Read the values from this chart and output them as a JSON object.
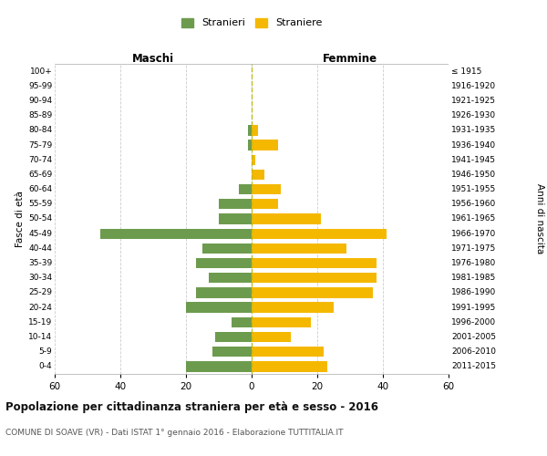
{
  "age_groups": [
    "100+",
    "95-99",
    "90-94",
    "85-89",
    "80-84",
    "75-79",
    "70-74",
    "65-69",
    "60-64",
    "55-59",
    "50-54",
    "45-49",
    "40-44",
    "35-39",
    "30-34",
    "25-29",
    "20-24",
    "15-19",
    "10-14",
    "5-9",
    "0-4"
  ],
  "birth_years": [
    "≤ 1915",
    "1916-1920",
    "1921-1925",
    "1926-1930",
    "1931-1935",
    "1936-1940",
    "1941-1945",
    "1946-1950",
    "1951-1955",
    "1956-1960",
    "1961-1965",
    "1966-1970",
    "1971-1975",
    "1976-1980",
    "1981-1985",
    "1986-1990",
    "1991-1995",
    "1996-2000",
    "2001-2005",
    "2006-2010",
    "2011-2015"
  ],
  "males": [
    0,
    0,
    0,
    0,
    1,
    1,
    0,
    0,
    4,
    10,
    10,
    46,
    15,
    17,
    13,
    17,
    20,
    6,
    11,
    12,
    20
  ],
  "females": [
    0,
    0,
    0,
    0,
    2,
    8,
    1,
    4,
    9,
    8,
    21,
    41,
    29,
    38,
    38,
    37,
    25,
    18,
    12,
    22,
    23
  ],
  "male_color": "#6d9b4e",
  "female_color": "#f5b800",
  "background_color": "#ffffff",
  "grid_color": "#cccccc",
  "dashed_line_color": "#b8b800",
  "xlim": 60,
  "title": "Popolazione per cittadinanza straniera per età e sesso - 2016",
  "subtitle": "COMUNE DI SOAVE (VR) - Dati ISTAT 1° gennaio 2016 - Elaborazione TUTTITALIA.IT",
  "xlabel_left": "Maschi",
  "xlabel_right": "Femmine",
  "ylabel_left": "Fasce di età",
  "ylabel_right": "Anni di nascita",
  "legend_male": "Stranieri",
  "legend_female": "Straniere"
}
